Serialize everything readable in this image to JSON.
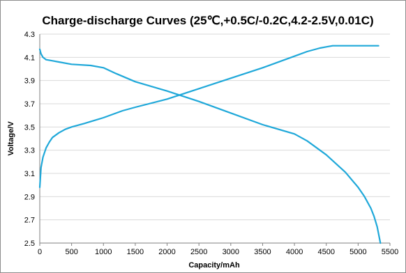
{
  "chart_data": {
    "type": "line",
    "title": "Charge-discharge  Curves (25℃,+0.5C/-0.2C,4.2-2.5V,0.01C)",
    "xlabel": "Capacity/mAh",
    "ylabel": "Voltage/V",
    "xlim": [
      0,
      5500
    ],
    "ylim": [
      2.5,
      4.3
    ],
    "x_ticks": [
      "0",
      "500",
      "1000",
      "1500",
      "2000",
      "2500",
      "3000",
      "3500",
      "4000",
      "4500",
      "5000",
      "5500"
    ],
    "y_ticks": [
      "2.5",
      "2.7",
      "2.9",
      "3.1",
      "3.3",
      "3.5",
      "3.7",
      "3.9",
      "4.1",
      "4.3"
    ],
    "grid": "horizontal",
    "legend": "none",
    "line_color": "#1fa8d9",
    "series": [
      {
        "x": [
          0,
          20,
          50,
          100,
          150,
          200,
          300,
          400,
          500,
          700,
          1000,
          1300,
          1500,
          2000,
          2500,
          3000,
          3500,
          4000,
          4200,
          4400,
          4500,
          4600,
          4800,
          5000,
          5200,
          5320
        ],
        "values": [
          2.98,
          3.15,
          3.24,
          3.32,
          3.37,
          3.41,
          3.45,
          3.48,
          3.5,
          3.53,
          3.58,
          3.64,
          3.67,
          3.74,
          3.83,
          3.92,
          4.01,
          4.11,
          4.15,
          4.18,
          4.19,
          4.2,
          4.2,
          4.2,
          4.2,
          4.2
        ]
      },
      {
        "x": [
          0,
          20,
          50,
          100,
          200,
          300,
          500,
          800,
          1000,
          1200,
          1500,
          2000,
          2500,
          3000,
          3500,
          4000,
          4200,
          4500,
          4800,
          5000,
          5100,
          5200,
          5250,
          5300,
          5350
        ],
        "values": [
          4.17,
          4.13,
          4.1,
          4.08,
          4.07,
          4.06,
          4.04,
          4.03,
          4.01,
          3.96,
          3.89,
          3.81,
          3.72,
          3.62,
          3.52,
          3.44,
          3.38,
          3.26,
          3.11,
          2.98,
          2.9,
          2.8,
          2.73,
          2.64,
          2.5
        ]
      }
    ]
  }
}
